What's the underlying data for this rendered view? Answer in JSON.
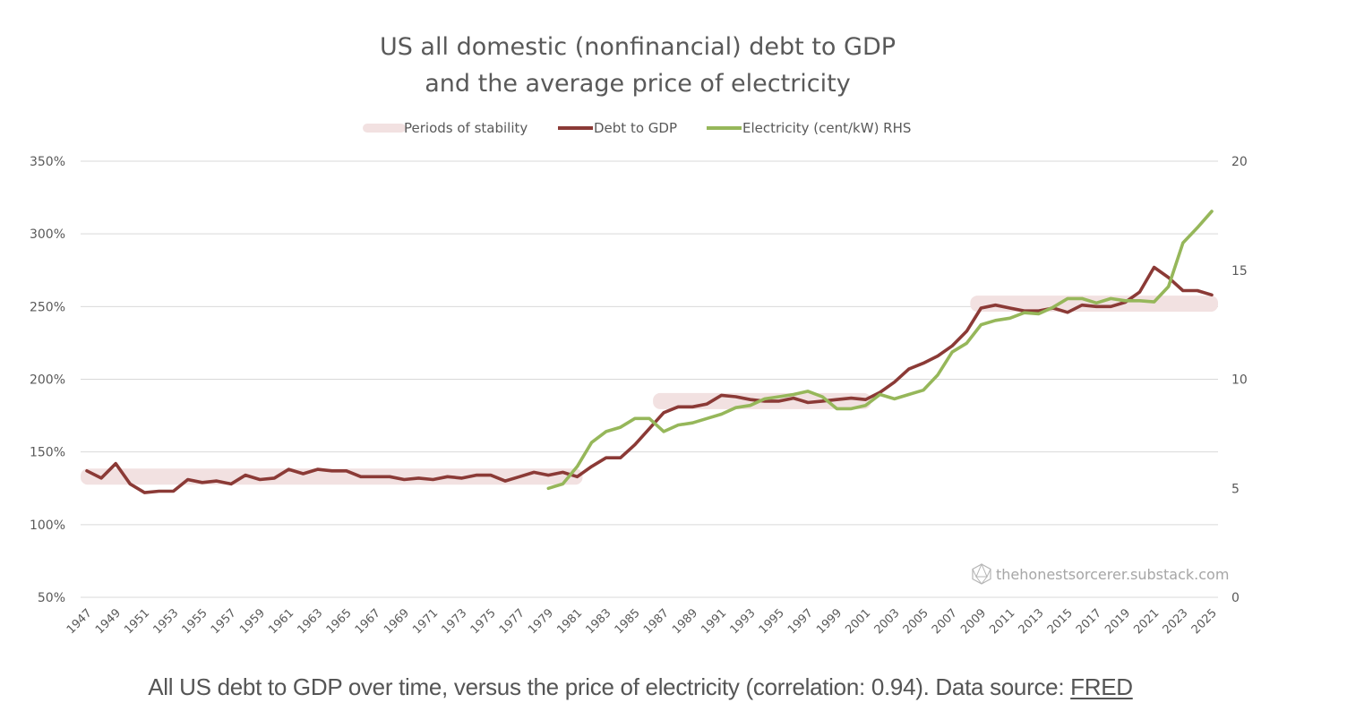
{
  "chart_data": {
    "type": "line",
    "title": [
      "US all domestic (nonfinancial) debt to GDP",
      "and the average price of electricity"
    ],
    "legend": {
      "placement": "top-center",
      "entries": [
        {
          "label": "Periods of stability",
          "color": "#f2e1e1"
        },
        {
          "label": "Debt to GDP",
          "color": "#8b3a36"
        },
        {
          "label": "Electricity (cent/kW) RHS",
          "color": "#96b75a"
        }
      ]
    },
    "x": [
      1947,
      1948,
      1949,
      1950,
      1951,
      1952,
      1953,
      1954,
      1955,
      1956,
      1957,
      1958,
      1959,
      1960,
      1961,
      1962,
      1963,
      1964,
      1965,
      1966,
      1967,
      1968,
      1969,
      1970,
      1971,
      1972,
      1973,
      1974,
      1975,
      1976,
      1977,
      1978,
      1979,
      1980,
      1981,
      1982,
      1983,
      1984,
      1985,
      1986,
      1987,
      1988,
      1989,
      1990,
      1991,
      1992,
      1993,
      1994,
      1995,
      1996,
      1997,
      1998,
      1999,
      2000,
      2001,
      2002,
      2003,
      2004,
      2005,
      2006,
      2007,
      2008,
      2009,
      2010,
      2011,
      2012,
      2013,
      2014,
      2015,
      2016,
      2017,
      2018,
      2019,
      2020,
      2021,
      2022,
      2023,
      2024,
      2025
    ],
    "x_tick_labels": [
      "1947",
      "1949",
      "1951",
      "1953",
      "1955",
      "1957",
      "1959",
      "1961",
      "1963",
      "1965",
      "1967",
      "1969",
      "1971",
      "1973",
      "1975",
      "1977",
      "1979",
      "1981",
      "1983",
      "1985",
      "1987",
      "1989",
      "1991",
      "1993",
      "1995",
      "1997",
      "1999",
      "2001",
      "2003",
      "2005",
      "2007",
      "2009",
      "2011",
      "2013",
      "2015",
      "2017",
      "2019",
      "2021",
      "2023",
      "2025"
    ],
    "y_left": {
      "ticks": [
        "50%",
        "100%",
        "150%",
        "200%",
        "250%",
        "300%",
        "350%"
      ],
      "range": [
        50,
        350
      ],
      "grid": true
    },
    "y_right": {
      "ticks": [
        "0",
        "5",
        "10",
        "15",
        "20"
      ],
      "range": [
        0,
        20
      ]
    },
    "series": [
      {
        "name": "Debt to GDP",
        "axis": "left",
        "unit": "%",
        "color": "#8b3a36",
        "start_year": 1947,
        "values": [
          137,
          132,
          142,
          128,
          122,
          123,
          123,
          131,
          129,
          130,
          128,
          134,
          131,
          132,
          138,
          135,
          138,
          137,
          137,
          133,
          133,
          133,
          131,
          132,
          131,
          133,
          132,
          134,
          134,
          130,
          133,
          136,
          134,
          136,
          133,
          140,
          146,
          146,
          155,
          166,
          177,
          181,
          181,
          183,
          189,
          188,
          186,
          185,
          185,
          187,
          184,
          185,
          186,
          187,
          186,
          191,
          198,
          207,
          211,
          216,
          223,
          233,
          249,
          251,
          249,
          247,
          247,
          249,
          246,
          251,
          250,
          250,
          253,
          260,
          277,
          270,
          261,
          261,
          258
        ]
      },
      {
        "name": "Electricity (cent/kW) RHS",
        "axis": "right",
        "unit": "cents/kWh",
        "color": "#96b75a",
        "start_year": 1979,
        "values": [
          5.0,
          5.2,
          6.0,
          7.1,
          7.6,
          7.8,
          8.2,
          8.2,
          7.6,
          7.9,
          8.0,
          8.2,
          8.4,
          8.7,
          8.8,
          9.1,
          9.2,
          9.3,
          9.45,
          9.2,
          8.65,
          8.65,
          8.8,
          9.3,
          9.1,
          9.3,
          9.5,
          10.2,
          11.25,
          11.65,
          12.5,
          12.7,
          12.8,
          13.05,
          13.0,
          13.3,
          13.7,
          13.7,
          13.5,
          13.7,
          13.6,
          13.6,
          13.55,
          14.25,
          16.25,
          16.95,
          17.7
        ]
      }
    ],
    "stability_periods": [
      {
        "from": 1947,
        "to": 1981,
        "level": 133
      },
      {
        "from": 1987,
        "to": 2001,
        "level": 185
      },
      {
        "from": 2009,
        "to": 2025,
        "level": 252
      }
    ],
    "watermark": "thehonestsorcerer.substack.com"
  },
  "caption": {
    "text": "All US debt to GDP over time, versus the price of electricity (correlation: 0.94). Data source: ",
    "link_label": "FRED"
  }
}
